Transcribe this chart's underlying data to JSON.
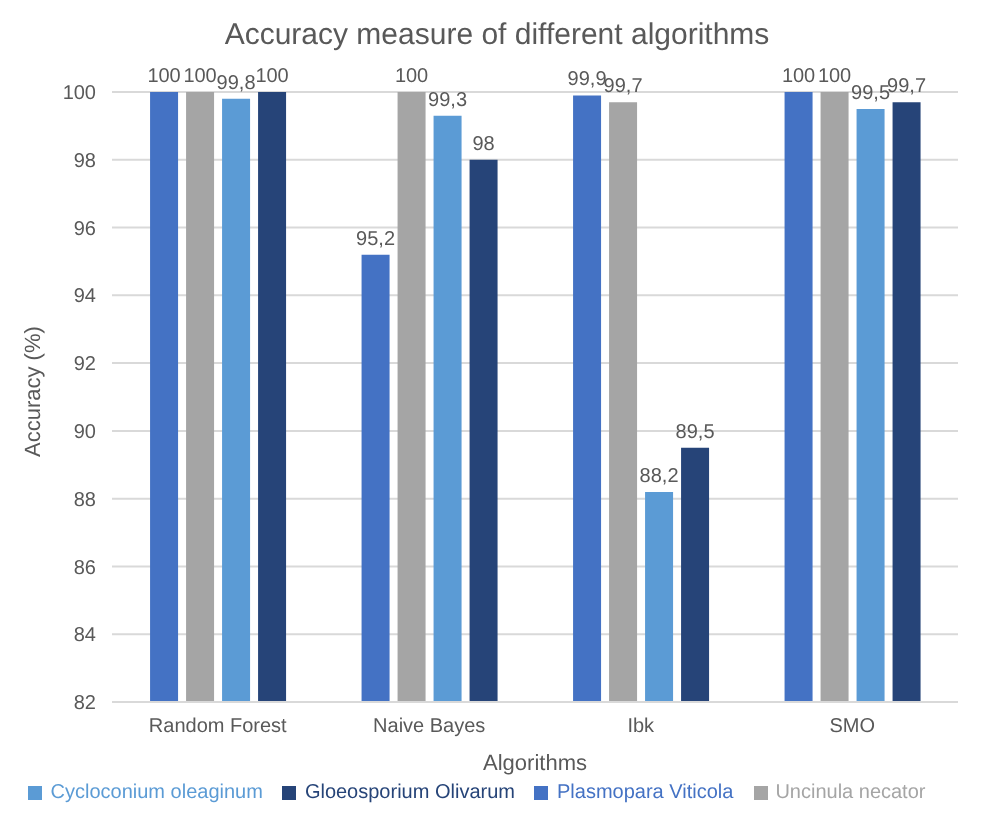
{
  "chart_data": {
    "type": "bar",
    "title": "Accuracy measure of different algorithms",
    "xlabel": "Algorithms",
    "ylabel": "Accuracy (%)",
    "categories": [
      "Random Forest",
      "Naive Bayes",
      "Ibk",
      "SMO"
    ],
    "series": [
      {
        "name": "Plasmopara Viticola",
        "color": "#4472c4",
        "values": [
          100,
          95.2,
          99.9,
          100
        ],
        "value_labels": [
          "100",
          "95,2",
          "99,9",
          "100"
        ]
      },
      {
        "name": "Uncinula necator",
        "color": "#a5a5a5",
        "values": [
          100,
          100,
          99.7,
          100
        ],
        "value_labels": [
          "100",
          "100",
          "99,7",
          "100"
        ]
      },
      {
        "name": "Cycloconium oleaginum",
        "color": "#5b9bd5",
        "values": [
          99.8,
          99.3,
          88.2,
          99.5
        ],
        "value_labels": [
          "99,8",
          "99,3",
          "88,2",
          "99,5"
        ]
      },
      {
        "name": "Gloeosporium Olivarum",
        "color": "#264478",
        "values": [
          100,
          98,
          89.5,
          99.7
        ],
        "value_labels": [
          "100",
          "98",
          "89,5",
          "99,7"
        ]
      }
    ],
    "ylim": [
      82,
      100
    ],
    "yticks": [
      82,
      84,
      86,
      88,
      90,
      92,
      94,
      96,
      98,
      100
    ],
    "grid": "y",
    "legend": "bottom"
  }
}
